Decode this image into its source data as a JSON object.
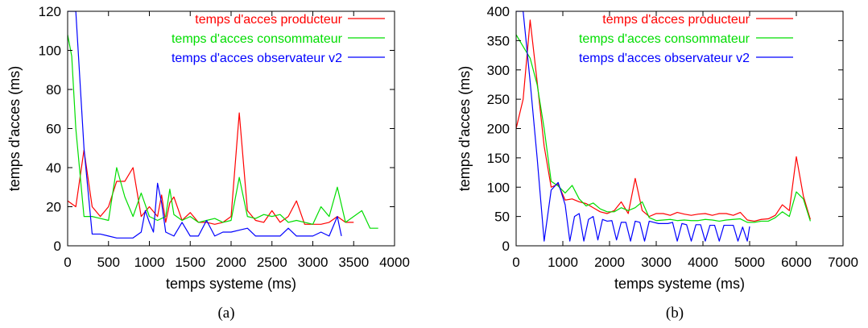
{
  "chart_data": [
    {
      "type": "line",
      "caption": "(a)",
      "xlabel": "temps systeme (ms)",
      "ylabel": "temps d'acces (ms)",
      "xlim": [
        0,
        4000
      ],
      "ylim": [
        0,
        120
      ],
      "xticks": [
        0,
        500,
        1000,
        1500,
        2000,
        2500,
        3000,
        3500,
        4000
      ],
      "yticks": [
        0,
        20,
        40,
        60,
        80,
        100,
        120
      ],
      "legend_position": "top-right",
      "series": [
        {
          "name": "temps d'acces producteur",
          "color": "#ff0000",
          "x": [
            0,
            100,
            200,
            300,
            400,
            500,
            600,
            700,
            800,
            900,
            1000,
            1100,
            1150,
            1200,
            1250,
            1300,
            1400,
            1500,
            1600,
            1700,
            1800,
            1900,
            2000,
            2100,
            2200,
            2300,
            2400,
            2500,
            2600,
            2700,
            2800,
            2900,
            3000,
            3100,
            3200,
            3300,
            3400,
            3500
          ],
          "y": [
            23,
            20,
            49,
            20,
            15,
            20,
            33,
            33,
            40,
            15,
            20,
            15,
            26,
            12,
            22,
            25,
            13,
            17,
            12,
            12,
            11,
            12,
            15,
            68,
            18,
            13,
            12,
            18,
            12,
            15,
            23,
            11,
            11,
            11,
            12,
            15,
            12,
            12
          ]
        },
        {
          "name": "temps d'acces consommateur",
          "color": "#00dd00",
          "x": [
            0,
            50,
            100,
            200,
            300,
            400,
            500,
            600,
            700,
            800,
            900,
            1000,
            1100,
            1200,
            1250,
            1300,
            1400,
            1500,
            1600,
            1700,
            1800,
            1900,
            2000,
            2100,
            2200,
            2300,
            2400,
            2500,
            2600,
            2700,
            2800,
            2900,
            3000,
            3100,
            3200,
            3300,
            3400,
            3500,
            3600,
            3700,
            3800
          ],
          "y": [
            108,
            97,
            60,
            15,
            15,
            14,
            13,
            40,
            25,
            15,
            27,
            15,
            13,
            15,
            29,
            16,
            13,
            15,
            12,
            13,
            14,
            12,
            13,
            35,
            15,
            14,
            16,
            15,
            16,
            12,
            13,
            12,
            11,
            20,
            15,
            30,
            12,
            15,
            18,
            9,
            9
          ]
        },
        {
          "name": "temps d'acces observateur v2",
          "color": "#0000ff",
          "x": [
            0,
            100,
            200,
            300,
            400,
            500,
            600,
            700,
            800,
            900,
            950,
            1000,
            1050,
            1100,
            1150,
            1200,
            1300,
            1400,
            1500,
            1600,
            1700,
            1800,
            1900,
            2000,
            2100,
            2200,
            2300,
            2400,
            2500,
            2600,
            2700,
            2800,
            2900,
            3000,
            3100,
            3200,
            3300,
            3350
          ],
          "y": [
            120,
            120,
            50,
            6,
            6,
            5,
            4,
            4,
            4,
            7,
            18,
            12,
            7,
            32,
            22,
            7,
            5,
            12,
            5,
            5,
            13,
            5,
            7,
            7,
            8,
            9,
            5,
            5,
            5,
            5,
            9,
            5,
            5,
            5,
            7,
            5,
            15,
            5
          ]
        }
      ]
    },
    {
      "type": "line",
      "caption": "(b)",
      "xlabel": "temps systeme (ms)",
      "ylabel": "temps d'acces (ms)",
      "xlim": [
        0,
        7000
      ],
      "ylim": [
        0,
        400
      ],
      "xticks": [
        0,
        1000,
        2000,
        3000,
        4000,
        5000,
        6000,
        7000
      ],
      "yticks": [
        0,
        50,
        100,
        150,
        200,
        250,
        300,
        350,
        400
      ],
      "legend_position": "top-right",
      "series": [
        {
          "name": "temps d'acces producteur",
          "color": "#ff0000",
          "x": [
            0,
            150,
            300,
            450,
            600,
            750,
            900,
            1050,
            1200,
            1350,
            1500,
            1650,
            1800,
            1950,
            2100,
            2250,
            2400,
            2550,
            2700,
            2850,
            3000,
            3150,
            3300,
            3450,
            3600,
            3750,
            3900,
            4050,
            4200,
            4350,
            4500,
            4650,
            4800,
            4950,
            5100,
            5250,
            5400,
            5550,
            5700,
            5850,
            6000,
            6150,
            6300
          ],
          "y": [
            200,
            250,
            385,
            280,
            170,
            100,
            105,
            78,
            80,
            75,
            72,
            65,
            58,
            55,
            60,
            75,
            55,
            115,
            60,
            50,
            55,
            55,
            52,
            57,
            54,
            52,
            54,
            55,
            52,
            55,
            55,
            52,
            57,
            44,
            42,
            45,
            46,
            52,
            70,
            60,
            152,
            85,
            45
          ]
        },
        {
          "name": "temps d'acces consommateur",
          "color": "#00dd00",
          "x": [
            0,
            150,
            300,
            450,
            600,
            750,
            900,
            1050,
            1200,
            1350,
            1500,
            1650,
            1800,
            1950,
            2100,
            2250,
            2400,
            2550,
            2700,
            2850,
            3000,
            3150,
            3300,
            3450,
            3600,
            3750,
            3900,
            4050,
            4200,
            4350,
            4500,
            4650,
            4800,
            4950,
            5100,
            5250,
            5400,
            5550,
            5700,
            5850,
            6000,
            6150,
            6300
          ],
          "y": [
            360,
            340,
            320,
            275,
            200,
            110,
            102,
            90,
            103,
            80,
            68,
            73,
            63,
            58,
            58,
            65,
            60,
            65,
            75,
            48,
            43,
            44,
            45,
            43,
            44,
            43,
            43,
            45,
            44,
            42,
            44,
            45,
            46,
            40,
            40,
            42,
            42,
            48,
            58,
            50,
            92,
            80,
            42
          ]
        },
        {
          "name": "temps d'acces observateur v2",
          "color": "#0000ff",
          "x": [
            0,
            150,
            300,
            450,
            600,
            750,
            900,
            1050,
            1150,
            1250,
            1350,
            1450,
            1550,
            1650,
            1750,
            1850,
            1950,
            2050,
            2150,
            2250,
            2350,
            2450,
            2550,
            2650,
            2750,
            2850,
            2950,
            3050,
            3150,
            3250,
            3350,
            3450,
            3550,
            3650,
            3750,
            3850,
            3950,
            4050,
            4150,
            4250,
            4350,
            4450,
            4550,
            4650,
            4750,
            4850,
            4950,
            5000
          ],
          "y": [
            400,
            400,
            280,
            150,
            8,
            95,
            108,
            70,
            8,
            50,
            55,
            8,
            45,
            50,
            10,
            45,
            42,
            43,
            10,
            40,
            40,
            8,
            42,
            40,
            8,
            42,
            40,
            38,
            38,
            38,
            40,
            8,
            38,
            36,
            8,
            36,
            36,
            8,
            35,
            35,
            8,
            35,
            35,
            35,
            8,
            32,
            8,
            33
          ]
        }
      ]
    }
  ]
}
